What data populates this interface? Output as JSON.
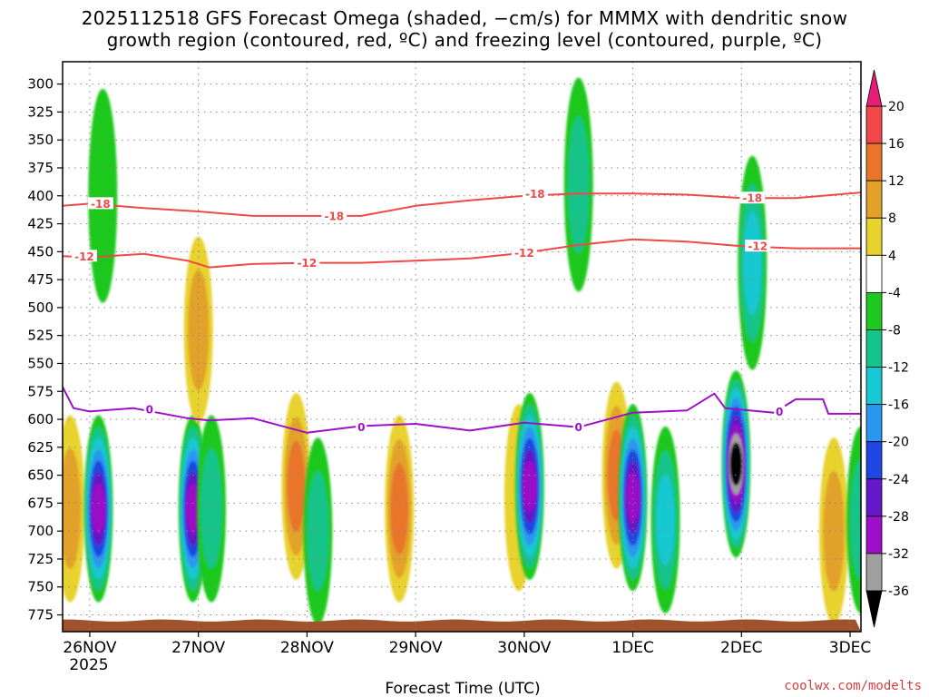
{
  "title": {
    "line1": "2025112518 GFS Forecast Omega (shaded, −cm/s) for MMMX with dendritic snow",
    "line2": "growth region (contoured, red, ºC) and freezing level (contoured, purple, ºC)"
  },
  "xlabel": "Forecast Time (UTC)",
  "year_label": "2025",
  "credit": "coolwx.com/modelts",
  "colors": {
    "gridline": "#888888",
    "dgz_contour": "#f04848",
    "freezing_contour": "#9b10c8",
    "terrain": "#a0522d"
  },
  "chart_data": {
    "type": "heatmap",
    "title": "2025112518 GFS Forecast Omega (shaded, −cm/s) for MMMX with dendritic snow growth region (contoured, red, ºC) and freezing level (contoured, purple, ºC)",
    "xlabel": "Forecast Time (UTC)",
    "ylabel": "",
    "x_range_days": [
      -0.25,
      7.1
    ],
    "y_range_hpa": [
      280,
      790
    ],
    "x_ticks": [
      {
        "day": 0,
        "label": "26NOV"
      },
      {
        "day": 1,
        "label": "27NOV"
      },
      {
        "day": 2,
        "label": "28NOV"
      },
      {
        "day": 3,
        "label": "29NOV"
      },
      {
        "day": 4,
        "label": "30NOV"
      },
      {
        "day": 5,
        "label": "1DEC"
      },
      {
        "day": 6,
        "label": "2DEC"
      },
      {
        "day": 7,
        "label": "3DEC"
      }
    ],
    "y_ticks": [
      300,
      325,
      350,
      375,
      400,
      425,
      450,
      475,
      500,
      525,
      550,
      575,
      600,
      625,
      650,
      675,
      700,
      725,
      750,
      775
    ],
    "colorbar": {
      "labels": [
        20,
        16,
        12,
        8,
        4,
        -4,
        -8,
        -12,
        -16,
        -20,
        -24,
        -28,
        -32,
        -36
      ],
      "bins": [
        {
          "lo": 16,
          "hi": 20,
          "color": "#f04848"
        },
        {
          "lo": 12,
          "hi": 16,
          "color": "#e8752a"
        },
        {
          "lo": 8,
          "hi": 12,
          "color": "#e2a22a"
        },
        {
          "lo": 4,
          "hi": 8,
          "color": "#e8d22e"
        },
        {
          "lo": -4,
          "hi": 4,
          "color": "#ffffff"
        },
        {
          "lo": -8,
          "hi": -4,
          "color": "#1ec81e"
        },
        {
          "lo": -12,
          "hi": -8,
          "color": "#15c48a"
        },
        {
          "lo": -16,
          "hi": -12,
          "color": "#18c8d2"
        },
        {
          "lo": -20,
          "hi": -16,
          "color": "#2a96f0"
        },
        {
          "lo": -24,
          "hi": -20,
          "color": "#1e46e0"
        },
        {
          "lo": -28,
          "hi": -24,
          "color": "#6418c8"
        },
        {
          "lo": -32,
          "hi": -28,
          "color": "#9b10c8"
        },
        {
          "lo": -36,
          "hi": -32,
          "color": "#a0a0a0"
        }
      ],
      "over_color": "#e61e78",
      "under_color": "#000000"
    },
    "omega_cores": [
      {
        "day": -0.18,
        "p": 680,
        "value": 9
      },
      {
        "day": 0.08,
        "p": 680,
        "value": -30
      },
      {
        "day": 0.12,
        "p": 400,
        "value": -6
      },
      {
        "day": 0.95,
        "p": 680,
        "value": -30
      },
      {
        "day": 1.12,
        "p": 680,
        "value": -8
      },
      {
        "day": 1.0,
        "p": 520,
        "value": 10
      },
      {
        "day": 1.9,
        "p": 660,
        "value": 12
      },
      {
        "day": 2.1,
        "p": 700,
        "value": -10
      },
      {
        "day": 2.85,
        "p": 680,
        "value": 13
      },
      {
        "day": 3.95,
        "p": 670,
        "value": 6
      },
      {
        "day": 4.05,
        "p": 660,
        "value": -30
      },
      {
        "day": 4.5,
        "p": 390,
        "value": -8
      },
      {
        "day": 4.85,
        "p": 650,
        "value": 13
      },
      {
        "day": 5.0,
        "p": 670,
        "value": -30
      },
      {
        "day": 5.3,
        "p": 690,
        "value": -12
      },
      {
        "day": 5.95,
        "p": 640,
        "value": -38
      },
      {
        "day": 6.1,
        "p": 460,
        "value": -14
      },
      {
        "day": 6.85,
        "p": 700,
        "value": 8
      },
      {
        "day": 7.1,
        "p": 690,
        "value": -10
      }
    ],
    "dgz_minus12_hpa": [
      {
        "day": -0.25,
        "p": 454
      },
      {
        "day": 0.0,
        "p": 455
      },
      {
        "day": 0.5,
        "p": 452
      },
      {
        "day": 0.9,
        "p": 458
      },
      {
        "day": 1.1,
        "p": 464
      },
      {
        "day": 1.5,
        "p": 461
      },
      {
        "day": 2.0,
        "p": 460
      },
      {
        "day": 2.5,
        "p": 460
      },
      {
        "day": 3.0,
        "p": 458
      },
      {
        "day": 3.5,
        "p": 456
      },
      {
        "day": 4.0,
        "p": 451
      },
      {
        "day": 4.5,
        "p": 444
      },
      {
        "day": 5.0,
        "p": 439
      },
      {
        "day": 5.5,
        "p": 441
      },
      {
        "day": 6.0,
        "p": 445
      },
      {
        "day": 6.5,
        "p": 447
      },
      {
        "day": 7.1,
        "p": 447
      }
    ],
    "dgz_minus18_hpa": [
      {
        "day": -0.25,
        "p": 409
      },
      {
        "day": 0.0,
        "p": 407
      },
      {
        "day": 0.5,
        "p": 411
      },
      {
        "day": 1.0,
        "p": 414
      },
      {
        "day": 1.5,
        "p": 418
      },
      {
        "day": 2.0,
        "p": 418
      },
      {
        "day": 2.5,
        "p": 418
      },
      {
        "day": 3.0,
        "p": 409
      },
      {
        "day": 3.5,
        "p": 404
      },
      {
        "day": 4.0,
        "p": 400
      },
      {
        "day": 4.5,
        "p": 398
      },
      {
        "day": 5.0,
        "p": 398
      },
      {
        "day": 5.5,
        "p": 399
      },
      {
        "day": 6.0,
        "p": 402
      },
      {
        "day": 6.5,
        "p": 402
      },
      {
        "day": 7.1,
        "p": 397
      }
    ],
    "freezing_level_hpa": [
      {
        "day": -0.25,
        "p": 571
      },
      {
        "day": -0.15,
        "p": 590
      },
      {
        "day": 0.0,
        "p": 593
      },
      {
        "day": 0.4,
        "p": 590
      },
      {
        "day": 0.9,
        "p": 599
      },
      {
        "day": 1.1,
        "p": 601
      },
      {
        "day": 1.5,
        "p": 599
      },
      {
        "day": 2.0,
        "p": 612
      },
      {
        "day": 2.5,
        "p": 606
      },
      {
        "day": 3.0,
        "p": 604
      },
      {
        "day": 3.5,
        "p": 610
      },
      {
        "day": 4.0,
        "p": 603
      },
      {
        "day": 4.5,
        "p": 607
      },
      {
        "day": 5.0,
        "p": 594
      },
      {
        "day": 5.5,
        "p": 592
      },
      {
        "day": 5.75,
        "p": 577
      },
      {
        "day": 5.85,
        "p": 590
      },
      {
        "day": 6.3,
        "p": 594
      },
      {
        "day": 6.5,
        "p": 582
      },
      {
        "day": 6.75,
        "p": 582
      },
      {
        "day": 6.8,
        "p": 595
      },
      {
        "day": 7.1,
        "p": 595
      }
    ],
    "contour_labels": [
      {
        "text": "-18",
        "day": 0.1,
        "p": 407,
        "line": "dgz"
      },
      {
        "text": "-18",
        "day": 2.25,
        "p": 418,
        "line": "dgz"
      },
      {
        "text": "-18",
        "day": 4.1,
        "p": 398,
        "line": "dgz"
      },
      {
        "text": "-18",
        "day": 6.1,
        "p": 402,
        "line": "dgz"
      },
      {
        "text": "-12",
        "day": -0.05,
        "p": 454,
        "line": "dgz"
      },
      {
        "text": "-12",
        "day": 2.0,
        "p": 460,
        "line": "dgz"
      },
      {
        "text": "-12",
        "day": 4.0,
        "p": 451,
        "line": "dgz"
      },
      {
        "text": "-12",
        "day": 6.15,
        "p": 445,
        "line": "dgz"
      },
      {
        "text": "0",
        "day": 0.55,
        "p": 591,
        "line": "fz"
      },
      {
        "text": "0",
        "day": 2.5,
        "p": 607,
        "line": "fz"
      },
      {
        "text": "0",
        "day": 4.5,
        "p": 607,
        "line": "fz"
      },
      {
        "text": "0",
        "day": 6.35,
        "p": 593,
        "line": "fz"
      }
    ],
    "surface_pressure_hpa": 780
  }
}
